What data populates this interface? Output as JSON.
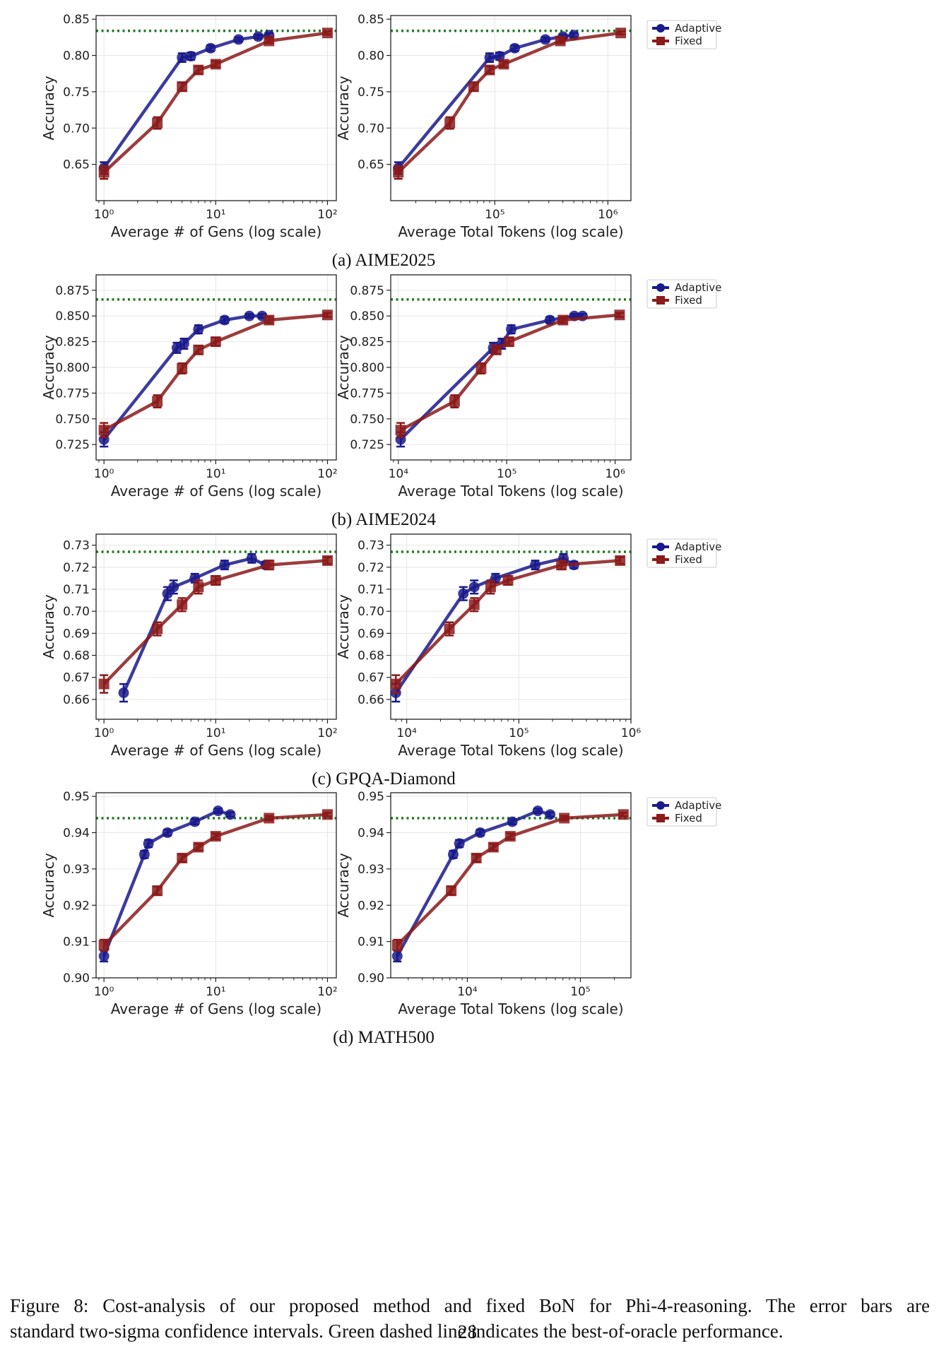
{
  "caption": {
    "line1": "Figure 8: Cost-analysis of our proposed method and fixed BoN for Phi-4-reasoning. The error bars are",
    "line2": "standard two-sigma confidence intervals. Green dashed line indicates the best-of-oracle performance.",
    "page_number": "28"
  },
  "colors": {
    "adaptive": "#1a1a8c",
    "fixed": "#8b1a1a",
    "oracle": "#1e7a1e"
  },
  "chart_data": [
    {
      "type": "line",
      "subfigure": "(a) AIME2025",
      "panel": "gens",
      "xlabel": "Average # of Gens (log scale)",
      "ylabel": "Accuracy",
      "xscale": "log",
      "xlim": [
        0.85,
        120
      ],
      "ylim": [
        0.6,
        0.855
      ],
      "xticks": [
        {
          "v": 1,
          "l": "10⁰"
        },
        {
          "v": 10,
          "l": "10¹"
        },
        {
          "v": 100,
          "l": "10²"
        }
      ],
      "yticks": [
        0.65,
        0.7,
        0.75,
        0.8,
        0.85
      ],
      "ytick_decimals": 2,
      "oracle": 0.834,
      "grid": true,
      "legend": "",
      "series": [
        {
          "name": "",
          "key": "adaptive",
          "x": [
            1,
            5,
            6,
            9,
            16,
            24,
            30
          ],
          "y": [
            0.645,
            0.797,
            0.799,
            0.81,
            0.822,
            0.826,
            0.828
          ],
          "err": [
            0.008,
            0.006,
            0.005,
            0.004,
            0.003,
            0.003,
            0.003
          ]
        },
        {
          "name": "",
          "key": "fixed",
          "x": [
            1,
            3,
            5,
            7,
            10,
            30,
            100
          ],
          "y": [
            0.639,
            0.707,
            0.757,
            0.78,
            0.788,
            0.82,
            0.831
          ],
          "err": [
            0.009,
            0.008,
            0.006,
            0.005,
            0.004,
            0.003,
            0.002
          ]
        }
      ]
    },
    {
      "type": "line",
      "subfigure": "(a) AIME2025",
      "panel": "tokens",
      "xlabel": "Average Total Tokens (log scale)",
      "ylabel": "Accuracy",
      "xscale": "log",
      "xlim": [
        12000,
        1600000
      ],
      "ylim": [
        0.6,
        0.855
      ],
      "xticks": [
        {
          "v": 100000,
          "l": "10⁵"
        },
        {
          "v": 1000000,
          "l": "10⁶"
        }
      ],
      "yticks": [
        0.65,
        0.7,
        0.75,
        0.8,
        0.85
      ],
      "ytick_decimals": 2,
      "oracle": 0.834,
      "grid": true,
      "legend": "top-right-outside",
      "series": [
        {
          "name": "Adaptive",
          "key": "adaptive",
          "x": [
            14000,
            90000,
            110000,
            150000,
            280000,
            400000,
            500000
          ],
          "y": [
            0.645,
            0.797,
            0.799,
            0.81,
            0.822,
            0.826,
            0.828
          ],
          "err": [
            0.008,
            0.006,
            0.005,
            0.004,
            0.003,
            0.003,
            0.003
          ]
        },
        {
          "name": "Fixed",
          "key": "fixed",
          "x": [
            14000,
            40000,
            65000,
            90000,
            120000,
            380000,
            1300000
          ],
          "y": [
            0.639,
            0.707,
            0.757,
            0.78,
            0.788,
            0.82,
            0.831
          ],
          "err": [
            0.009,
            0.008,
            0.006,
            0.005,
            0.004,
            0.003,
            0.002
          ]
        }
      ]
    },
    {
      "type": "line",
      "subfigure": "(b) AIME2024",
      "panel": "gens",
      "xlabel": "Average # of Gens (log scale)",
      "ylabel": "Accuracy",
      "xscale": "log",
      "xlim": [
        0.85,
        120
      ],
      "ylim": [
        0.71,
        0.89
      ],
      "xticks": [
        {
          "v": 1,
          "l": "10⁰"
        },
        {
          "v": 10,
          "l": "10¹"
        },
        {
          "v": 100,
          "l": "10²"
        }
      ],
      "yticks": [
        0.725,
        0.75,
        0.775,
        0.8,
        0.825,
        0.85,
        0.875
      ],
      "ytick_decimals": 3,
      "oracle": 0.866,
      "grid": true,
      "legend": "",
      "series": [
        {
          "name": "",
          "key": "adaptive",
          "x": [
            1,
            4.5,
            5.2,
            7,
            12,
            20,
            26
          ],
          "y": [
            0.73,
            0.819,
            0.823,
            0.837,
            0.846,
            0.85,
            0.85
          ],
          "err": [
            0.007,
            0.005,
            0.005,
            0.004,
            0.003,
            0.002,
            0.002
          ]
        },
        {
          "name": "",
          "key": "fixed",
          "x": [
            1,
            3,
            5,
            7,
            10,
            30,
            100
          ],
          "y": [
            0.739,
            0.767,
            0.799,
            0.817,
            0.825,
            0.846,
            0.851
          ],
          "err": [
            0.007,
            0.006,
            0.005,
            0.004,
            0.004,
            0.003,
            0.002
          ]
        }
      ]
    },
    {
      "type": "line",
      "subfigure": "(b) AIME2024",
      "panel": "tokens",
      "xlabel": "Average Total Tokens (log scale)",
      "ylabel": "Accuracy",
      "xscale": "log",
      "xlim": [
        8500,
        1400000
      ],
      "ylim": [
        0.71,
        0.89
      ],
      "xticks": [
        {
          "v": 10000,
          "l": "10⁴"
        },
        {
          "v": 100000,
          "l": "10⁵"
        },
        {
          "v": 1000000,
          "l": "10⁶"
        }
      ],
      "yticks": [
        0.725,
        0.75,
        0.775,
        0.8,
        0.825,
        0.85,
        0.875
      ],
      "ytick_decimals": 3,
      "oracle": 0.866,
      "grid": true,
      "legend": "top-right-outside",
      "series": [
        {
          "name": "Adaptive",
          "key": "adaptive",
          "x": [
            10500,
            75000,
            90000,
            110000,
            250000,
            420000,
            500000
          ],
          "y": [
            0.73,
            0.819,
            0.823,
            0.837,
            0.846,
            0.85,
            0.85
          ],
          "err": [
            0.007,
            0.005,
            0.005,
            0.004,
            0.003,
            0.002,
            0.002
          ]
        },
        {
          "name": "Fixed",
          "key": "fixed",
          "x": [
            10500,
            33000,
            58000,
            80000,
            105000,
            330000,
            1100000
          ],
          "y": [
            0.739,
            0.767,
            0.799,
            0.817,
            0.825,
            0.846,
            0.851
          ],
          "err": [
            0.007,
            0.006,
            0.005,
            0.004,
            0.004,
            0.003,
            0.002
          ]
        }
      ]
    },
    {
      "type": "line",
      "subfigure": "(c) GPQA-Diamond",
      "panel": "gens",
      "xlabel": "Average # of Gens (log scale)",
      "ylabel": "Accuracy",
      "xscale": "log",
      "xlim": [
        0.85,
        120
      ],
      "ylim": [
        0.651,
        0.735
      ],
      "xticks": [
        {
          "v": 1,
          "l": "10⁰"
        },
        {
          "v": 10,
          "l": "10¹"
        },
        {
          "v": 100,
          "l": "10²"
        }
      ],
      "yticks": [
        0.66,
        0.67,
        0.68,
        0.69,
        0.7,
        0.71,
        0.72,
        0.73
      ],
      "ytick_decimals": 2,
      "oracle": 0.727,
      "grid": true,
      "legend": "",
      "series": [
        {
          "name": "",
          "key": "adaptive",
          "x": [
            1.5,
            3.7,
            4.2,
            6.5,
            12,
            21,
            28
          ],
          "y": [
            0.663,
            0.708,
            0.711,
            0.715,
            0.721,
            0.724,
            0.721
          ],
          "err": [
            0.004,
            0.003,
            0.003,
            0.002,
            0.002,
            0.002,
            0.0015
          ]
        },
        {
          "name": "",
          "key": "fixed",
          "x": [
            1,
            3,
            5,
            7,
            10,
            30,
            100
          ],
          "y": [
            0.667,
            0.692,
            0.703,
            0.711,
            0.714,
            0.721,
            0.723
          ],
          "err": [
            0.004,
            0.003,
            0.003,
            0.003,
            0.002,
            0.002,
            0.0015
          ]
        }
      ]
    },
    {
      "type": "line",
      "subfigure": "(c) GPQA-Diamond",
      "panel": "tokens",
      "xlabel": "Average Total Tokens (log scale)",
      "ylabel": "Accuracy",
      "xscale": "log",
      "xlim": [
        7200,
        1000000
      ],
      "ylim": [
        0.651,
        0.735
      ],
      "xticks": [
        {
          "v": 10000,
          "l": "10⁴"
        },
        {
          "v": 100000,
          "l": "10⁵"
        },
        {
          "v": 1000000,
          "l": "10⁶"
        }
      ],
      "yticks": [
        0.66,
        0.67,
        0.68,
        0.69,
        0.7,
        0.71,
        0.72,
        0.73
      ],
      "ytick_decimals": 2,
      "oracle": 0.727,
      "grid": true,
      "legend": "top-right-outside",
      "series": [
        {
          "name": "Adaptive",
          "key": "adaptive",
          "x": [
            8000,
            32000,
            40000,
            62000,
            140000,
            250000,
            310000
          ],
          "y": [
            0.663,
            0.708,
            0.711,
            0.715,
            0.721,
            0.724,
            0.721
          ],
          "err": [
            0.004,
            0.003,
            0.003,
            0.002,
            0.002,
            0.002,
            0.0015
          ]
        },
        {
          "name": "Fixed",
          "key": "fixed",
          "x": [
            8000,
            24000,
            40000,
            56000,
            80000,
            240000,
            800000
          ],
          "y": [
            0.667,
            0.692,
            0.703,
            0.711,
            0.714,
            0.721,
            0.723
          ],
          "err": [
            0.004,
            0.003,
            0.003,
            0.003,
            0.002,
            0.002,
            0.0015
          ]
        }
      ]
    },
    {
      "type": "line",
      "subfigure": "(d) MATH500",
      "panel": "gens",
      "xlabel": "Average # of Gens (log scale)",
      "ylabel": "Accuracy",
      "xscale": "log",
      "xlim": [
        0.85,
        120
      ],
      "ylim": [
        0.9,
        0.951
      ],
      "xticks": [
        {
          "v": 1,
          "l": "10⁰"
        },
        {
          "v": 10,
          "l": "10¹"
        },
        {
          "v": 100,
          "l": "10²"
        }
      ],
      "yticks": [
        0.9,
        0.91,
        0.92,
        0.93,
        0.94,
        0.95
      ],
      "ytick_decimals": 2,
      "oracle": 0.944,
      "grid": true,
      "legend": "",
      "series": [
        {
          "name": "",
          "key": "adaptive",
          "x": [
            1,
            2.3,
            2.5,
            3.7,
            6.5,
            10.5,
            13.5
          ],
          "y": [
            0.906,
            0.934,
            0.937,
            0.94,
            0.943,
            0.946,
            0.945
          ],
          "err": [
            0.0015,
            0.001,
            0.001,
            0.0008,
            0.0007,
            0.0006,
            0.0006
          ]
        },
        {
          "name": "",
          "key": "fixed",
          "x": [
            1,
            3,
            5,
            7,
            10,
            30,
            100
          ],
          "y": [
            0.909,
            0.924,
            0.933,
            0.936,
            0.939,
            0.944,
            0.945
          ],
          "err": [
            0.0015,
            0.0012,
            0.001,
            0.0009,
            0.0008,
            0.0006,
            0.0005
          ]
        }
      ]
    },
    {
      "type": "line",
      "subfigure": "(d) MATH500",
      "panel": "tokens",
      "xlabel": "Average Total Tokens (log scale)",
      "ylabel": "Accuracy",
      "xscale": "log",
      "xlim": [
        2100,
        280000
      ],
      "ylim": [
        0.9,
        0.951
      ],
      "xticks": [
        {
          "v": 10000,
          "l": "10⁴"
        },
        {
          "v": 100000,
          "l": "10⁵"
        }
      ],
      "yticks": [
        0.9,
        0.91,
        0.92,
        0.93,
        0.94,
        0.95
      ],
      "ytick_decimals": 2,
      "oracle": 0.944,
      "grid": true,
      "legend": "top-right-outside",
      "series": [
        {
          "name": "Adaptive",
          "key": "adaptive",
          "x": [
            2400,
            7500,
            8500,
            13000,
            25000,
            42000,
            54000
          ],
          "y": [
            0.906,
            0.934,
            0.937,
            0.94,
            0.943,
            0.946,
            0.945
          ],
          "err": [
            0.0015,
            0.001,
            0.001,
            0.0008,
            0.0007,
            0.0006,
            0.0006
          ]
        },
        {
          "name": "Fixed",
          "key": "fixed",
          "x": [
            2400,
            7200,
            12000,
            17000,
            24000,
            72000,
            240000
          ],
          "y": [
            0.909,
            0.924,
            0.933,
            0.936,
            0.939,
            0.944,
            0.945
          ],
          "err": [
            0.0015,
            0.0012,
            0.001,
            0.0009,
            0.0008,
            0.0006,
            0.0005
          ]
        }
      ]
    }
  ]
}
